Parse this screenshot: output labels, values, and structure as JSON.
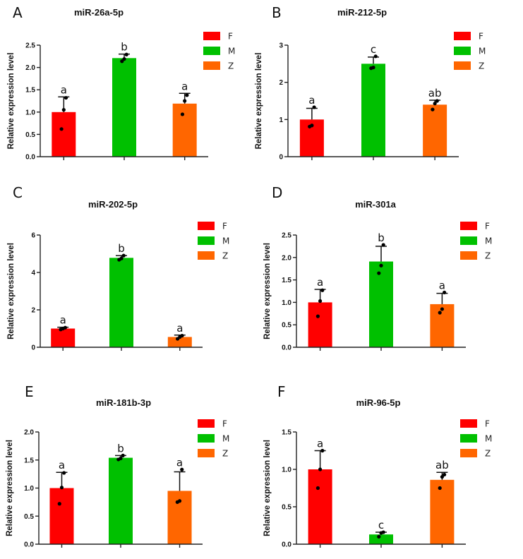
{
  "chart_data": [
    {
      "panel": "A",
      "type": "bar",
      "title": "miR-26a-5p",
      "ylabel": "Relative expression level",
      "xlabel": "",
      "categories": [
        "F",
        "M",
        "Z"
      ],
      "values": [
        1.0,
        2.21,
        1.19
      ],
      "error_upper": [
        1.34,
        2.3,
        1.42
      ],
      "points": [
        [
          0.62,
          1.05,
          1.32
        ],
        [
          2.14,
          2.19,
          2.29
        ],
        [
          0.95,
          1.25,
          1.38
        ]
      ],
      "significance": [
        "a",
        "b",
        "a"
      ],
      "ylim": [
        0,
        2.5
      ],
      "yticks": [
        "0.0",
        "0.5",
        "1.0",
        "1.5",
        "2.0",
        "2.5"
      ],
      "ytick_values": [
        0,
        0.5,
        1.0,
        1.5,
        2.0,
        2.5
      ]
    },
    {
      "panel": "B",
      "type": "bar",
      "title": "miR-212-5p",
      "ylabel": "Relative expression level",
      "xlabel": "",
      "categories": [
        "F",
        "M",
        "Z"
      ],
      "values": [
        1.0,
        2.5,
        1.4
      ],
      "error_upper": [
        1.3,
        2.68,
        1.52
      ],
      "points": [
        [
          0.81,
          0.84,
          1.33
        ],
        [
          2.38,
          2.4,
          2.7
        ],
        [
          1.27,
          1.43,
          1.5
        ]
      ],
      "significance": [
        "a",
        "c",
        "ab"
      ],
      "ylim": [
        0,
        3
      ],
      "yticks": [
        "0",
        "1",
        "2",
        "3"
      ],
      "ytick_values": [
        0,
        1,
        2,
        3
      ]
    },
    {
      "panel": "C",
      "type": "bar",
      "title": "miR-202-5p",
      "ylabel": "Relative expression level",
      "xlabel": "",
      "categories": [
        "F",
        "M",
        "Z"
      ],
      "values": [
        1.0,
        4.78,
        0.55
      ],
      "error_upper": [
        1.07,
        4.9,
        0.65
      ],
      "points": [
        [
          0.95,
          1.0,
          1.05
        ],
        [
          4.68,
          4.75,
          4.9
        ],
        [
          0.45,
          0.55,
          0.62
        ]
      ],
      "significance": [
        "a",
        "b",
        "a"
      ],
      "ylim": [
        0,
        6
      ],
      "yticks": [
        "0",
        "2",
        "4",
        "6"
      ],
      "ytick_values": [
        0,
        2,
        4,
        6
      ]
    },
    {
      "panel": "D",
      "type": "bar",
      "title": "miR-301a",
      "ylabel": "Relative expression level",
      "xlabel": "",
      "categories": [
        "F",
        "M",
        "Z"
      ],
      "values": [
        1.0,
        1.91,
        0.96
      ],
      "error_upper": [
        1.29,
        2.25,
        1.2
      ],
      "points": [
        [
          0.69,
          1.03,
          1.27
        ],
        [
          1.65,
          1.82,
          2.28
        ],
        [
          0.77,
          0.85,
          1.22
        ]
      ],
      "significance": [
        "a",
        "b",
        "a"
      ],
      "ylim": [
        0,
        2.5
      ],
      "yticks": [
        "0.0",
        "0.5",
        "1.0",
        "1.5",
        "2.0",
        "2.5"
      ],
      "ytick_values": [
        0,
        0.5,
        1.0,
        1.5,
        2.0,
        2.5
      ]
    },
    {
      "panel": "E",
      "type": "bar",
      "title": "miR-181b-3p",
      "ylabel": "Relative expression level",
      "xlabel": "",
      "categories": [
        "F",
        "M",
        "Z"
      ],
      "values": [
        1.0,
        1.54,
        0.95
      ],
      "error_upper": [
        1.28,
        1.58,
        1.29
      ],
      "points": [
        [
          0.72,
          1.01,
          1.27
        ],
        [
          1.51,
          1.53,
          1.58
        ],
        [
          0.75,
          0.77,
          1.33
        ]
      ],
      "significance": [
        "a",
        "b",
        "a"
      ],
      "ylim": [
        0,
        2.0
      ],
      "yticks": [
        "0.0",
        "0.5",
        "1.0",
        "1.5",
        "2.0"
      ],
      "ytick_values": [
        0,
        0.5,
        1.0,
        1.5,
        2.0
      ]
    },
    {
      "panel": "F",
      "type": "bar",
      "title": "miR-96-5p",
      "ylabel": "Relative expression level",
      "xlabel": "",
      "categories": [
        "F",
        "M",
        "Z"
      ],
      "values": [
        1.0,
        0.13,
        0.86
      ],
      "error_upper": [
        1.25,
        0.16,
        0.96
      ],
      "points": [
        [
          0.75,
          1.0,
          1.25
        ],
        [
          0.1,
          0.15,
          0.16
        ],
        [
          0.75,
          0.9,
          0.93
        ]
      ],
      "significance": [
        "a",
        "c",
        "ab"
      ],
      "ylim": [
        0,
        1.5
      ],
      "yticks": [
        "0.0",
        "0.5",
        "1.0",
        "1.5"
      ],
      "ytick_values": [
        0,
        0.5,
        1.0,
        1.5
      ]
    }
  ],
  "legend": {
    "placement": "top-right",
    "entries": [
      {
        "label": "F",
        "color": "#ff0000"
      },
      {
        "label": "M",
        "color": "#00c000"
      },
      {
        "label": "Z",
        "color": "#ff6600"
      }
    ]
  }
}
